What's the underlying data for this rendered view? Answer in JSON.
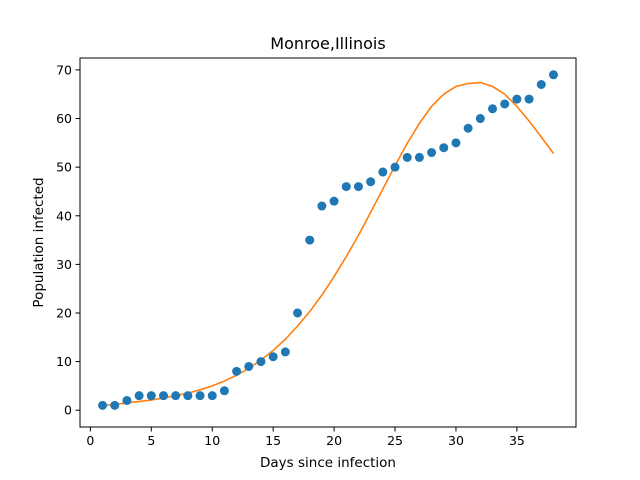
{
  "chart_data": {
    "type": "scatter",
    "title": "Monroe,Illinois",
    "xlabel": "Days since infection",
    "ylabel": "Population infected",
    "xlim": [
      -0.85,
      39.85
    ],
    "ylim": [
      -3.45,
      72.45
    ],
    "xticks": [
      0,
      5,
      10,
      15,
      20,
      25,
      30,
      35
    ],
    "yticks": [
      0,
      10,
      20,
      30,
      40,
      50,
      60,
      70
    ],
    "grid": false,
    "series": [
      {
        "kind": "scatter",
        "color": "#1f77b4",
        "x": [
          1,
          2,
          3,
          4,
          5,
          6,
          7,
          8,
          9,
          10,
          11,
          12,
          13,
          14,
          15,
          16,
          17,
          18,
          19,
          20,
          21,
          22,
          23,
          24,
          25,
          26,
          27,
          28,
          29,
          30,
          31,
          32,
          33,
          34,
          35,
          36,
          37,
          38
        ],
        "y": [
          1,
          1,
          2,
          3,
          3,
          3,
          3,
          3,
          3,
          3,
          4,
          8,
          9,
          10,
          11,
          12,
          20,
          35,
          42,
          43,
          46,
          46,
          47,
          49,
          50,
          52,
          52,
          53,
          54,
          55,
          58,
          60,
          62,
          63,
          64,
          64,
          67,
          69
        ]
      },
      {
        "kind": "line",
        "color": "#ff7f0e",
        "x": [
          1,
          2,
          3,
          4,
          5,
          6,
          7,
          8,
          9,
          10,
          11,
          12,
          13,
          14,
          15,
          16,
          17,
          18,
          19,
          20,
          21,
          22,
          23,
          24,
          25,
          26,
          27,
          28,
          29,
          30,
          31,
          32,
          33,
          34,
          35,
          36,
          37,
          38
        ],
        "y": [
          1.0,
          1.2,
          1.5,
          1.8,
          2.1,
          2.5,
          3.0,
          3.5,
          4.2,
          5.0,
          6.0,
          7.2,
          8.6,
          10.3,
          12.3,
          14.6,
          17.3,
          20.3,
          23.7,
          27.5,
          31.6,
          36.0,
          40.7,
          45.5,
          50.3,
          54.9,
          59.0,
          62.5,
          65.0,
          66.6,
          67.2,
          67.4,
          66.6,
          65.0,
          62.5,
          59.5,
          56.2,
          52.8
        ]
      }
    ]
  }
}
